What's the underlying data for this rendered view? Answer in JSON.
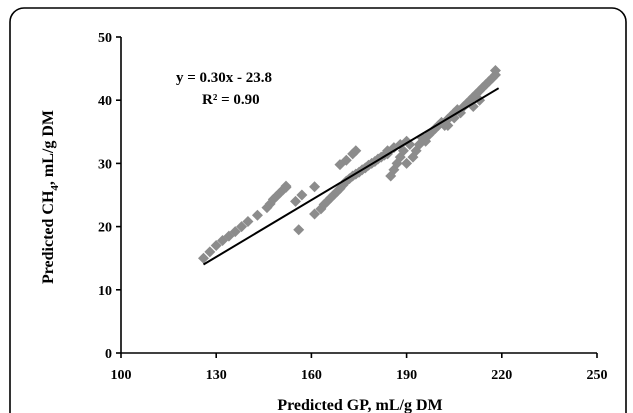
{
  "chart_data": {
    "type": "scatter",
    "title": "",
    "xlabel": "Predicted GP, mL/g DM",
    "ylabel_main": "Predicted CH",
    "ylabel_sub": "4",
    "ylabel_tail": ", mL/g DM",
    "xlim": [
      100,
      250
    ],
    "ylim": [
      0,
      50
    ],
    "x_ticks": [
      100,
      130,
      160,
      190,
      220,
      250
    ],
    "y_ticks": [
      0,
      10,
      20,
      30,
      40,
      50
    ],
    "grid": false,
    "legend": "none",
    "marker_color": "#8c8c8c",
    "trendline_color": "#000000",
    "annotation": {
      "equation": "y = 0.30x - 23.8",
      "r2": "R² = 0.90"
    },
    "trendline": {
      "slope": 0.3,
      "intercept": -23.8,
      "x_range": [
        126,
        219
      ]
    },
    "points": [
      [
        126,
        15
      ],
      [
        128,
        16
      ],
      [
        130,
        17
      ],
      [
        132,
        17.8
      ],
      [
        134,
        18.5
      ],
      [
        136,
        19.2
      ],
      [
        138,
        20
      ],
      [
        140,
        20.8
      ],
      [
        143,
        21.8
      ],
      [
        146,
        23
      ],
      [
        147,
        23.6
      ],
      [
        148,
        24.3
      ],
      [
        149,
        24.8
      ],
      [
        150,
        25.3
      ],
      [
        151,
        25.8
      ],
      [
        152,
        26.2
      ],
      [
        152,
        26.4
      ],
      [
        155,
        24
      ],
      [
        156,
        19.5
      ],
      [
        157,
        25
      ],
      [
        161,
        26.3
      ],
      [
        161,
        22
      ],
      [
        163,
        22.8
      ],
      [
        164,
        23.5
      ],
      [
        165,
        24
      ],
      [
        166,
        24.5
      ],
      [
        167,
        25
      ],
      [
        168,
        25.5
      ],
      [
        169,
        26
      ],
      [
        170,
        26.6
      ],
      [
        171,
        27.2
      ],
      [
        172,
        27.6
      ],
      [
        173,
        28
      ],
      [
        174,
        28.3
      ],
      [
        175,
        28.6
      ],
      [
        176,
        29
      ],
      [
        177,
        29.3
      ],
      [
        178,
        29.7
      ],
      [
        179,
        30
      ],
      [
        180,
        30.3
      ],
      [
        181,
        30.7
      ],
      [
        182,
        31
      ],
      [
        183,
        31.3
      ],
      [
        184,
        31.5
      ],
      [
        184,
        32
      ],
      [
        185,
        28
      ],
      [
        186,
        29
      ],
      [
        186,
        32.5
      ],
      [
        187,
        30
      ],
      [
        188,
        31
      ],
      [
        188,
        33
      ],
      [
        189,
        32
      ],
      [
        190,
        33.5
      ],
      [
        190,
        30
      ],
      [
        191,
        33
      ],
      [
        192,
        31
      ],
      [
        193,
        32
      ],
      [
        194,
        33
      ],
      [
        195,
        34
      ],
      [
        196,
        33.5
      ],
      [
        197,
        34.5
      ],
      [
        198,
        35
      ],
      [
        199,
        35.5
      ],
      [
        200,
        36
      ],
      [
        201,
        36.5
      ],
      [
        202,
        36
      ],
      [
        203,
        37
      ],
      [
        204,
        37.5
      ],
      [
        205,
        38
      ],
      [
        206,
        38.5
      ],
      [
        207,
        38
      ],
      [
        208,
        39
      ],
      [
        209,
        39.5
      ],
      [
        210,
        40
      ],
      [
        211,
        40.5
      ],
      [
        212,
        41
      ],
      [
        213,
        41.5
      ],
      [
        214,
        42
      ],
      [
        215,
        42.5
      ],
      [
        216,
        43
      ],
      [
        217,
        43.5
      ],
      [
        218,
        44
      ],
      [
        218,
        44.7
      ],
      [
        169,
        29.8
      ],
      [
        171,
        30.5
      ],
      [
        173,
        31.5
      ],
      [
        174,
        32
      ],
      [
        203,
        36
      ],
      [
        205,
        37.2
      ],
      [
        211,
        39
      ],
      [
        213,
        40
      ]
    ]
  }
}
